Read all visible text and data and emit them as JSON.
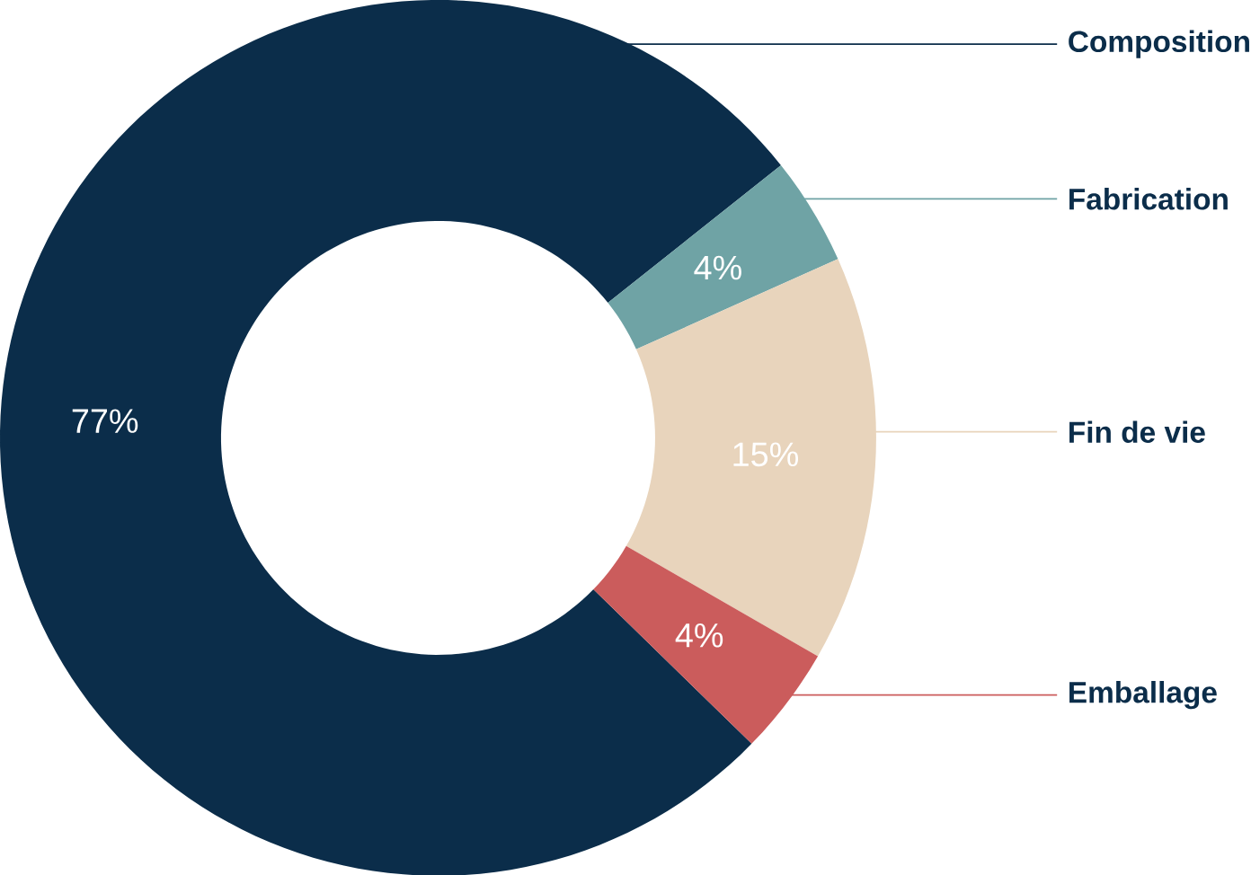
{
  "chart_data": {
    "type": "donut",
    "categories": [
      "Composition",
      "Fabrication",
      "Fin de vie",
      "Emballage"
    ],
    "values": [
      77,
      4,
      15,
      4
    ],
    "colors": [
      "#0b2d4a",
      "#6fa3a5",
      "#e8d4bc",
      "#cb5c5c"
    ],
    "value_labels": [
      "77%",
      "4%",
      "15%",
      "4%"
    ]
  }
}
